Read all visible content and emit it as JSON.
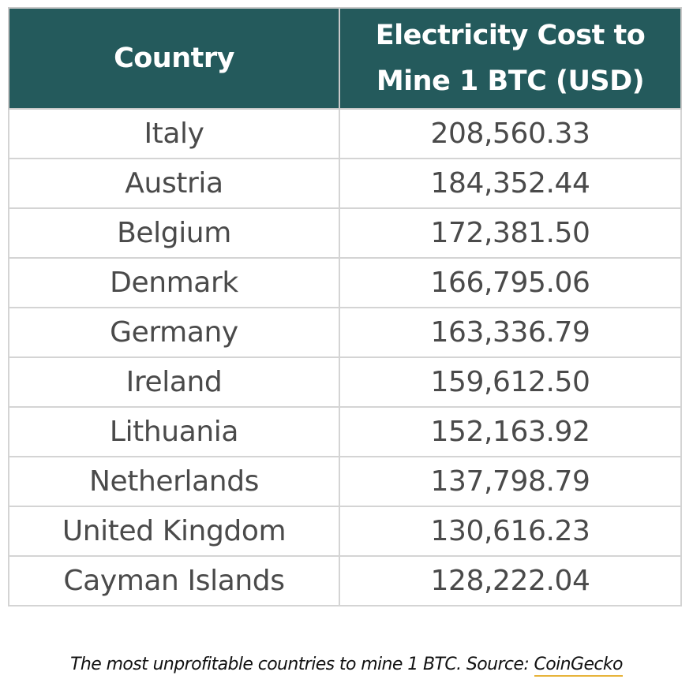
{
  "table": {
    "headers": {
      "country": "Country",
      "cost_line1": "Electricity Cost to",
      "cost_line2": "Mine 1 BTC (USD)"
    },
    "rows": [
      {
        "country": "Italy",
        "cost": "208,560.33"
      },
      {
        "country": "Austria",
        "cost": "184,352.44"
      },
      {
        "country": "Belgium",
        "cost": "172,381.50"
      },
      {
        "country": "Denmark",
        "cost": "166,795.06"
      },
      {
        "country": "Germany",
        "cost": "163,336.79"
      },
      {
        "country": "Ireland",
        "cost": "159,612.50"
      },
      {
        "country": "Lithuania",
        "cost": "152,163.92"
      },
      {
        "country": "Netherlands",
        "cost": "137,798.79"
      },
      {
        "country": "United Kingdom",
        "cost": "130,616.23"
      },
      {
        "country": "Cayman Islands",
        "cost": "128,222.04"
      }
    ]
  },
  "caption": {
    "text": "The most unprofitable countries to mine 1 BTC. Source: ",
    "link_text": "CoinGecko"
  },
  "colors": {
    "header_bg": "#245a5c",
    "link_underline": "#e7b33a"
  }
}
